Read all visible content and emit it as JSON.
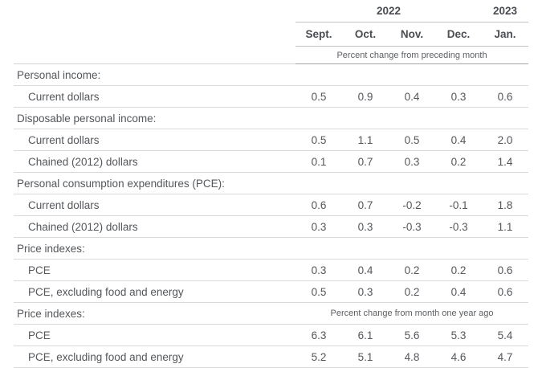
{
  "chart_data": {
    "type": "table",
    "title": "",
    "year_groups": [
      {
        "label": "2022",
        "span": 4
      },
      {
        "label": "2023",
        "span": 1
      }
    ],
    "columns": [
      "Sept.",
      "Oct.",
      "Nov.",
      "Dec.",
      "Jan."
    ],
    "unit_caption": "Percent change from preceding month",
    "rows": [
      {
        "label": "Personal income:",
        "section": true
      },
      {
        "label": "Current dollars",
        "indent": 1,
        "values": [
          "0.5",
          "0.9",
          "0.4",
          "0.3",
          "0.6"
        ]
      },
      {
        "label": "Disposable personal income:",
        "section": true
      },
      {
        "label": "Current dollars",
        "indent": 1,
        "values": [
          "0.5",
          "1.1",
          "0.5",
          "0.4",
          "2.0"
        ]
      },
      {
        "label": "Chained (2012) dollars",
        "indent": 1,
        "values": [
          "0.1",
          "0.7",
          "0.3",
          "0.2",
          "1.4"
        ]
      },
      {
        "label": "Personal consumption expenditures (PCE):",
        "section": true
      },
      {
        "label": "Current dollars",
        "indent": 1,
        "values": [
          "0.6",
          "0.7",
          "-0.2",
          "-0.1",
          "1.8"
        ]
      },
      {
        "label": "Chained (2012) dollars",
        "indent": 1,
        "values": [
          "0.3",
          "0.3",
          "-0.3",
          "-0.3",
          "1.1"
        ]
      },
      {
        "label": "Price indexes:",
        "section": true
      },
      {
        "label": "PCE",
        "indent": 1,
        "values": [
          "0.3",
          "0.4",
          "0.2",
          "0.2",
          "0.6"
        ]
      },
      {
        "label": "PCE, excluding food and energy",
        "indent": 1,
        "values": [
          "0.5",
          "0.3",
          "0.2",
          "0.4",
          "0.6"
        ]
      },
      {
        "label": "Price indexes:",
        "section": true,
        "span_text": "Percent change from month one year ago"
      },
      {
        "label": "PCE",
        "indent": 1,
        "values": [
          "6.3",
          "6.1",
          "5.6",
          "5.3",
          "5.4"
        ]
      },
      {
        "label": "PCE, excluding food and energy",
        "indent": 1,
        "values": [
          "5.2",
          "5.1",
          "4.8",
          "4.6",
          "4.7"
        ]
      }
    ],
    "colors": {
      "body_text": "#54575b",
      "header_text": "#4a4d52",
      "row_border": "#d9d9d9",
      "header_border": "#c3c3c3",
      "unit_border": "#a5a5a5",
      "background": "#ffffff"
    }
  }
}
